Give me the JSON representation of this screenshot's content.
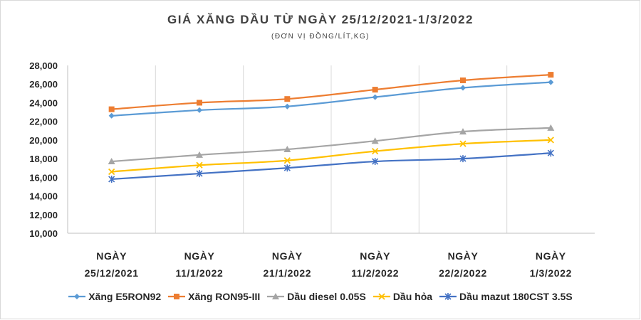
{
  "chart_data": {
    "type": "line",
    "title": "GIÁ XĂNG DẦU TỪ NGÀY 25/12/2021-1/3/2022",
    "subtitle": "(ĐƠN VỊ ĐỒNG/LÍT,KG)",
    "categories": [
      [
        "NGÀY",
        "25/12/2021"
      ],
      [
        "NGÀY",
        "11/1/2022"
      ],
      [
        "NGÀY",
        "21/1/2022"
      ],
      [
        "NGÀY",
        "11/2/2022"
      ],
      [
        "NGÀY",
        "22/2/2022"
      ],
      [
        "NGÀY",
        "1/3/2022"
      ]
    ],
    "ylim": [
      10000,
      28000
    ],
    "yticks": [
      10000,
      12000,
      14000,
      16000,
      18000,
      20000,
      22000,
      24000,
      26000,
      28000
    ],
    "ytick_labels": [
      "10,000",
      "12,000",
      "14,000",
      "16,000",
      "18,000",
      "20,000",
      "22,000",
      "24,000",
      "26,000",
      "28,000"
    ],
    "grid": "vertical",
    "legend_position": "bottom",
    "series": [
      {
        "name": "Xăng E5RON92",
        "color": "#5b9bd5",
        "marker": "diamond",
        "values": [
          22600,
          23200,
          23600,
          24600,
          25600,
          26200
        ]
      },
      {
        "name": "Xăng RON95-III",
        "color": "#ed7d31",
        "marker": "square",
        "values": [
          23300,
          24000,
          24400,
          25400,
          26400,
          27000
        ]
      },
      {
        "name": "Dầu diesel 0.05S",
        "color": "#a5a5a5",
        "marker": "triangle",
        "values": [
          17700,
          18400,
          19000,
          19900,
          20900,
          21300
        ]
      },
      {
        "name": "Dầu hỏa",
        "color": "#ffc000",
        "marker": "x",
        "values": [
          16600,
          17300,
          17800,
          18800,
          19600,
          20000
        ]
      },
      {
        "name": "Dầu mazut 180CST 3.5S",
        "color": "#4472c4",
        "marker": "star",
        "values": [
          15800,
          16400,
          17000,
          17700,
          18000,
          18600
        ]
      }
    ]
  }
}
